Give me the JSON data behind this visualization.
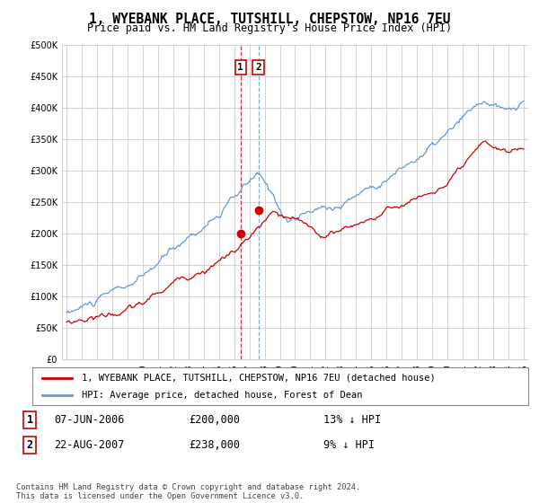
{
  "title": "1, WYEBANK PLACE, TUTSHILL, CHEPSTOW, NP16 7EU",
  "subtitle": "Price paid vs. HM Land Registry's House Price Index (HPI)",
  "legend_line1": "1, WYEBANK PLACE, TUTSHILL, CHEPSTOW, NP16 7EU (detached house)",
  "legend_line2": "HPI: Average price, detached house, Forest of Dean",
  "sale1_date": "07-JUN-2006",
  "sale1_price": 200000,
  "sale1_label": "13% ↓ HPI",
  "sale2_date": "22-AUG-2007",
  "sale2_price": 238000,
  "sale2_label": "9% ↓ HPI",
  "footnote": "Contains HM Land Registry data © Crown copyright and database right 2024.\nThis data is licensed under the Open Government Licence v3.0.",
  "red_color": "#cc0000",
  "blue_color": "#6699cc",
  "ylim": [
    0,
    500000
  ],
  "yticks": [
    0,
    50000,
    100000,
    150000,
    200000,
    250000,
    300000,
    350000,
    400000,
    450000,
    500000
  ],
  "start_year": 1995,
  "end_year": 2025
}
